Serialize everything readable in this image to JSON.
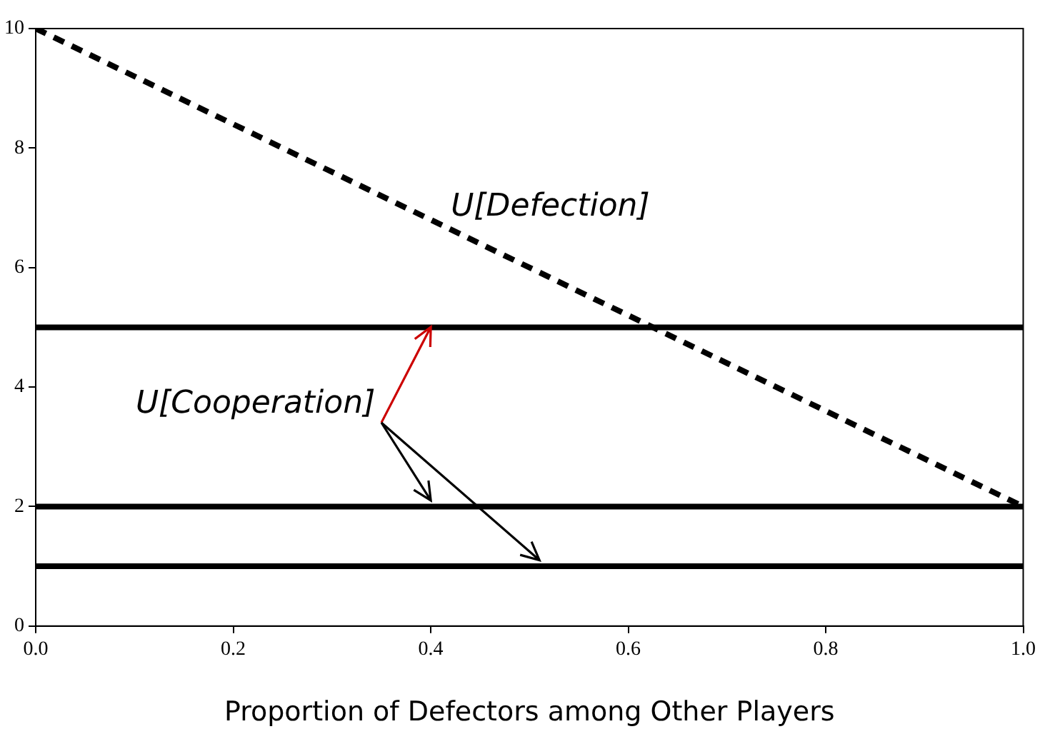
{
  "chart_data": {
    "type": "line",
    "xlabel": "Proportion of Defectors among Other Players",
    "x": [
      0,
      1
    ],
    "series": [
      {
        "name": "U[Defection]",
        "color": "#000000",
        "values": [
          10,
          2
        ],
        "line_style": "dashed"
      },
      {
        "color": "#000000",
        "values": [
          5,
          5
        ]
      },
      {
        "color": "#000000",
        "values": [
          2,
          2
        ]
      },
      {
        "color": "#000000",
        "values": [
          1,
          1
        ]
      }
    ],
    "annotations": [
      {
        "text": "U[Cooperation]",
        "x": 0.4,
        "y": 5
      }
    ],
    "xlim": [
      0,
      1
    ],
    "xticks": [
      {
        "value": 0,
        "label": "0.0"
      },
      {
        "value": 0.2,
        "label": "0.2"
      },
      {
        "value": 0.4,
        "label": "0.4"
      },
      {
        "value": 0.6,
        "label": "0.6"
      },
      {
        "value": 0.8,
        "label": "0.8"
      },
      {
        "value": 1,
        "label": "1.0"
      }
    ],
    "ylim": [
      0,
      10
    ],
    "yticks": [
      0,
      2,
      4,
      6,
      8,
      10
    ],
    "grid": false,
    "legend": false,
    "marker": "none",
    "line_style": "solid"
  }
}
